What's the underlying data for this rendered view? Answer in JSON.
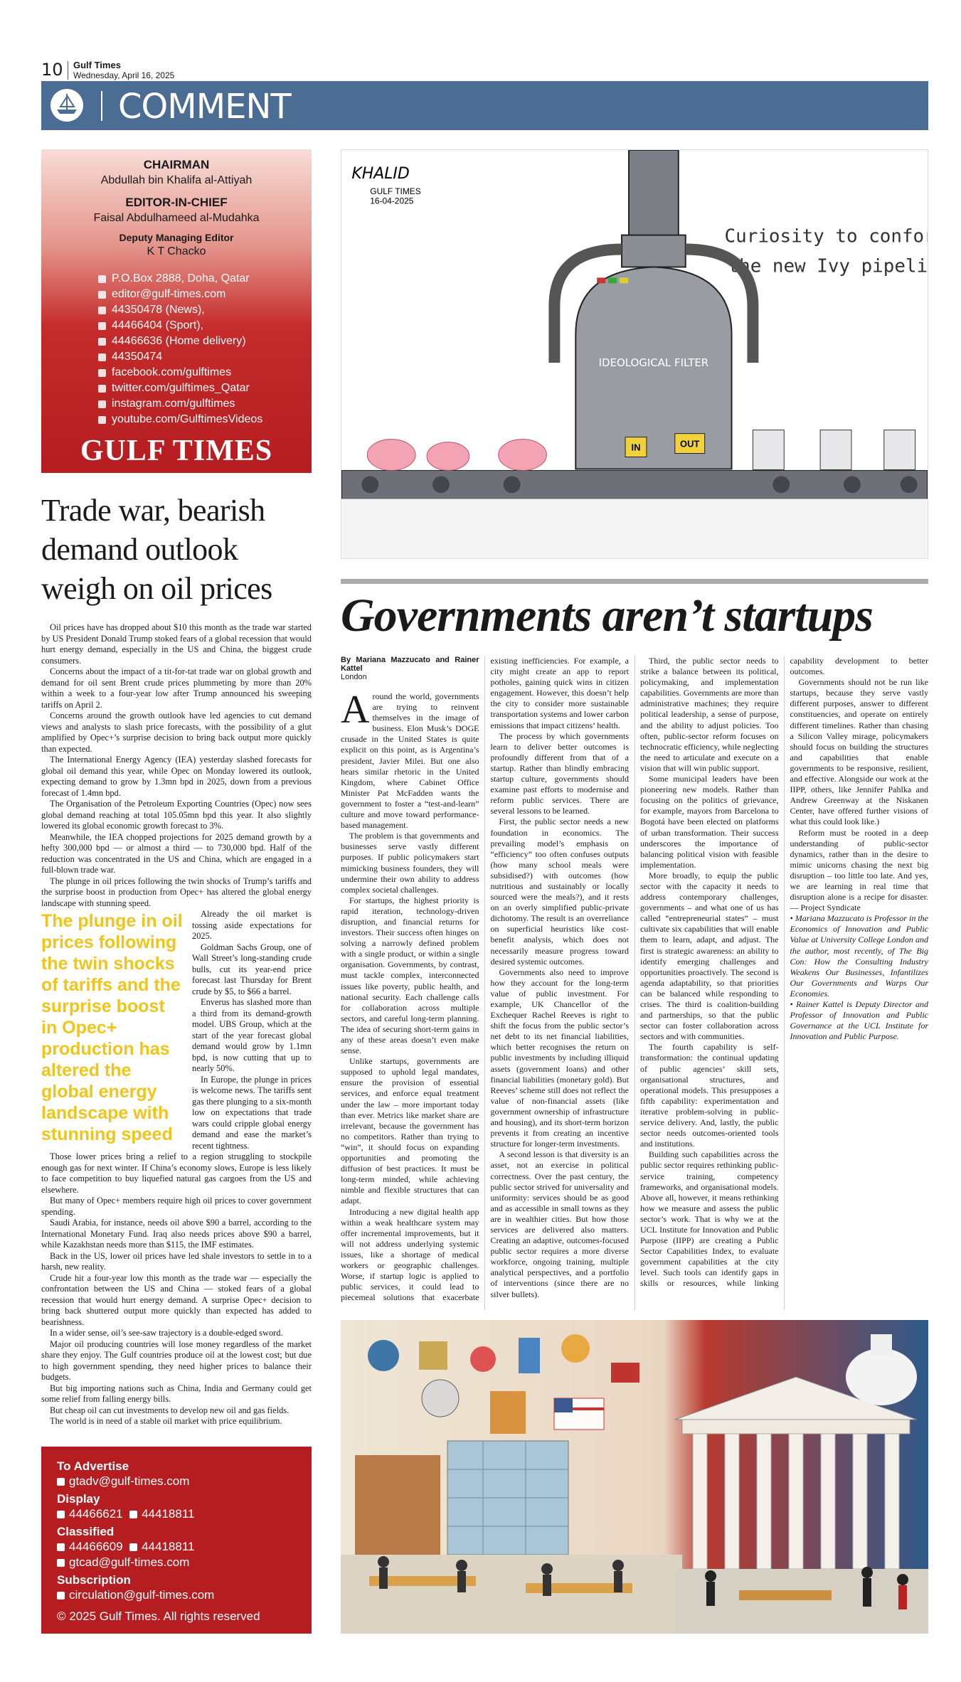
{
  "header": {
    "page_number": "10",
    "publication": "Gulf Times",
    "date": "Wednesday, April 16, 2025",
    "section": "COMMENT"
  },
  "masthead": {
    "chairman_label": "CHAIRMAN",
    "chairman": "Abdullah bin Khalifa al-Attiyah",
    "editor_label": "EDITOR-IN-CHIEF",
    "editor": "Faisal Abdulhameed al-Mudahka",
    "deputy_label": "Deputy Managing Editor",
    "deputy": "K T Chacko",
    "contacts": [
      "P.O.Box 2888, Doha, Qatar",
      "editor@gulf-times.com",
      "44350478 (News),",
      "44466404 (Sport),",
      "44466636 (Home delivery)",
      "44350474",
      "facebook.com/gulftimes",
      "twitter.com/gulftimes_Qatar",
      "instagram.com/gulftimes",
      "youtube.com/GulftimesVideos"
    ],
    "logo": "GULF TIMES"
  },
  "oil_article": {
    "headline": "Trade war, bearish demand outlook weigh on oil prices",
    "pull_quote": "The plunge in oil prices following the twin shocks of tariffs and the surprise boost in Opec+ production has altered the global energy landscape with stunning speed",
    "paragraphs_before_quote": [
      "Oil prices have has dropped about $10 this month as the trade war started by US President Donald Trump stoked fears of a global recession that would hurt energy demand, especially in the US and China, the biggest crude consumers.",
      "Concerns about the impact of a tit-for-tat trade war on global growth and demand for oil sent Brent crude prices plummeting by more than 20% within a week to a four-year low after Trump announced his sweeping tariffs on April 2.",
      "Concerns around the growth outlook have led agencies to cut demand views and analysts to slash price forecasts, with the possibility of a glut amplified by Opec+’s surprise decision to bring back output more quickly than expected.",
      "The International Energy Agency (IEA) yesterday slashed forecasts for global oil demand this year, while Opec on Monday lowered its outlook, expecting demand to grow by 1.3mn bpd in 2025, down from a previous forecast of 1.4mn bpd.",
      "The Organisation of the Petroleum Exporting Countries (Opec) now sees global demand reaching at total 105.05mn bpd this year. It also slightly lowered its global economic growth forecast to 3%.",
      "Meanwhile, the IEA chopped projections for 2025 demand growth by a hefty 300,000 bpd — or almost a third — to 730,000 bpd. Half of the reduction was concentrated in the US and China, which are engaged in a full-blown trade war.",
      "The plunge in oil prices following the twin shocks of Trump’s tariffs and the surprise boost in production from Opec+ has altered the global energy landscape with stunning speed."
    ],
    "paragraphs_after_quote": [
      "Already the oil market is tossing aside expectations for 2025.",
      "Goldman Sachs Group, one of Wall Street’s long-standing crude bulls, cut its year-end price forecast last Thursday for Brent crude by $5, to $66 a barrel.",
      "Enverus has slashed more than a third from its demand-growth model. UBS Group, which at the start of the year forecast global demand would grow by 1.1mn bpd, is now cutting that up to nearly 50%.",
      "In Europe, the plunge in prices is welcome news. The tariffs sent gas there plunging to a six-month low on expectations that trade wars could cripple global energy demand and ease the market’s recent tightness.",
      "Those lower prices bring a relief to a region struggling to stockpile enough gas for next winter. If China’s economy slows, Europe is less likely to face competition to buy liquefied natural gas cargoes from the US and elsewhere.",
      "But many of Opec+ members require high oil prices to cover government spending.",
      "Saudi Arabia, for instance, needs oil above $90 a barrel, according to the International Monetary Fund. Iraq also needs prices above $90 a barrel, while Kazakhstan needs more than $115, the IMF estimates.",
      "Back in the US, lower oil prices have led shale investors to settle in to a harsh, new reality.",
      "Crude hit a four-year low this month as the trade war — especially the confrontation between the US and China — stoked fears of a global recession that would hurt energy demand. A surprise Opec+ decision to bring back shuttered output more quickly than expected has added to bearishness.",
      "In a wider sense, oil’s see-saw trajectory is a double-edged sword.",
      "Major oil producing countries will lose money regardless of the market share they enjoy. The Gulf countries produce oil at the lowest cost; but due to high government spending, they need higher prices to balance their budgets.",
      "But big importing nations such as China, India and Germany could get some relief from falling energy bills.",
      "But cheap oil can cut investments to develop new oil and gas fields.",
      "The world is in need of a stable oil market with price equilibrium."
    ]
  },
  "cartoon": {
    "signature": "KHALID",
    "publication": "GULF TIMES",
    "date": "16-04-2025",
    "caption_line1": "Curiosity to conformity:",
    "caption_line2": "the new Ivy pipeline.",
    "machine_label": "IDEOLOGICAL FILTER",
    "in_label": "IN",
    "out_label": "OUT"
  },
  "opinion": {
    "headline": "Governments aren’t startups",
    "byline": "By Mariana Mazzucato and Rainer Kattel",
    "location": "London",
    "paragraphs": [
      "Around the world, governments are trying to reinvent themselves in the image of business. Elon Musk’s DOGE crusade in the United States is quite explicit on this point, as is Argentina’s president, Javier Milei. But one also hears similar rhetoric in the United Kingdom, where Cabinet Office Minister Pat McFadden wants the government to foster a “test-and-learn” culture and move toward performance-based management.",
      "The problem is that governments and businesses serve vastly different purposes. If public policymakers start mimicking business founders, they will undermine their own ability to address complex societal challenges.",
      "For startups, the highest priority is rapid iteration, technology-driven disruption, and financial returns for investors. Their success often hinges on solving a narrowly defined problem with a single product, or within a single organisation. Governments, by contrast, must tackle complex, interconnected issues like poverty, public health, and national security. Each challenge calls for collaboration across multiple sectors, and careful long-term planning. The idea of securing short-term gains in any of these areas doesn’t even make sense.",
      "Unlike startups, governments are supposed to uphold legal mandates, ensure the provision of essential services, and enforce equal treatment under the law – more important today than ever. Metrics like market share are irrelevant, because the government has no competitors. Rather than trying to “win”, it should focus on expanding opportunities and promoting the diffusion of best practices. It must be long-term minded, while achieving nimble and flexible structures that can adapt.",
      "Introducing a new digital health app within a weak healthcare system may offer incremental improvements, but it will not address underlying systemic issues, like a shortage of medical workers or geographic challenges. Worse, if startup logic is applied to public services, it could lead to piecemeal solutions that exacerbate existing inefficiencies. For example, a city might create an app to report potholes, gaining quick wins in citizen engagement. However, this doesn’t help the city to consider more sustainable transportation systems and lower carbon emissions that impact citizens’ health.",
      "The process by which governments learn to deliver better outcomes is profoundly different from that of a startup. Rather than blindly embracing startup culture, governments should examine past efforts to modernise and reform public services. There are several lessons to be learned.",
      "First, the public sector needs a new foundation in economics. The prevailing model’s emphasis on “efficiency” too often confuses outputs (how many school meals were subsidised?) with outcomes (how nutritious and sustainably or locally sourced were the meals?), and it rests on an overly simplified public-private dichotomy. The result is an overreliance on superficial heuristics like cost-benefit analysis, which does not necessarily measure progress toward desired systemic outcomes.",
      "Governments also need to improve how they account for the long-term value of public investment. For example, UK Chancellor of the Exchequer Rachel Reeves is right to shift the focus from the public sector’s net debt to its net financial liabilities, which better recognises the return on public investments by including illiquid assets (government loans) and other financial liabilities (monetary gold). But Reeves’ scheme still does not reflect the value of non-financial assets (like government ownership of infrastructure and housing), and its short-term horizon prevents it from creating an incentive structure for longer-term investments.",
      "A second lesson is that diversity is an asset, not an exercise in political correctness. Over the past century, the public sector strived for universality and uniformity: services should be as good and as accessible in small towns as they are in wealthier cities. But how those services are delivered also matters. Creating an adaptive, outcomes-focused public sector requires a more diverse workforce, ongoing training, multiple analytical perspectives, and a portfolio of interventions (since there are no silver bullets).",
      "Third, the public sector needs to strike a balance between its political, policymaking, and implementation capabilities. Governments are more than administrative machines; they require political leadership, a sense of purpose, and the ability to adjust policies. Too often, public-sector reform focuses on technocratic efficiency, while neglecting the need to articulate and execute on a vision that will win public support.",
      "Some municipal leaders have been pioneering new models. Rather than focusing on the politics of grievance, for example, mayors from Barcelona to Bogotá have been elected on platforms of urban transformation. Their success underscores the importance of balancing political vision with feasible implementation.",
      "More broadly, to equip the public sector with the capacity it needs to address contemporary challenges, governments – and what one of us has called “entrepreneurial states” – must cultivate six capabilities that will enable them to learn, adapt, and adjust. The first is strategic awareness: an ability to identify emerging challenges and opportunities proactively. The second is agenda adaptability, so that priorities can be balanced while responding to crises. The third is coalition-building and partnerships, so that the public sector can foster collaboration across sectors and with communities.",
      "The fourth capability is self-transformation: the continual updating of public agencies’ skill sets, organisational structures, and operational models. This presupposes a fifth capability: experimentation and iterative problem-solving in public-service delivery. And, lastly, the public sector needs outcomes-oriented tools and institutions.",
      "Building such capabilities across the public sector requires rethinking public-service training, competency frameworks, and organisational models. Above all, however, it means rethinking how we measure and assess the public sector’s work. That is why we at the UCL Institute for Innovation and Public Purpose (IIPP) are creating a Public Sector Capabilities Index, to evaluate government capabilities at the city level. Such tools can identify gaps in skills or resources, while linking capability development to better outcomes.",
      "Governments should not be run like startups, because they serve vastly different purposes, answer to different constituencies, and operate on entirely different timelines. Rather than chasing a Silicon Valley mirage, policymakers should focus on building the structures and capabilities that enable governments to be responsive, resilient, and effective. Alongside our work at the IIPP, others, like Jennifer Pahlka and Andrew Greenway at the Niskanen Center, have offered further visions of what this could look like.)",
      "Reform must be rooted in a deep understanding of public-sector dynamics, rather than in the desire to mimic unicorns chasing the next big disruption – too little too late. And yes, we are learning in real time that disruption alone is a recipe for disaster. — Project Syndicate"
    ],
    "bios": [
      "• Mariana Mazzucato is Professor in the Economics of Innovation and Public Value at University College London and the author, most recently, of The Big Con: How the Consulting Industry Weakens Our Businesses, Infantilizes Our Governments and Warps Our Economies.",
      "• Rainer Kattel is Deputy Director and Professor of Innovation and Public Governance at the UCL Institute for Innovation and Public Purpose."
    ]
  },
  "advertising": {
    "advertise_label": "To Advertise",
    "advertise_email": "gtadv@gulf-times.com",
    "display_label": "Display",
    "display_phone1": "44466621",
    "display_phone2": "44418811",
    "classified_label": "Classified",
    "classified_phone1": "44466609",
    "classified_phone2": "44418811",
    "classified_email": "gtcad@gulf-times.com",
    "subscription_label": "Subscription",
    "subscription_email": "circulation@gulf-times.com",
    "copyright": "© 2025 Gulf Times. All rights reserved"
  }
}
